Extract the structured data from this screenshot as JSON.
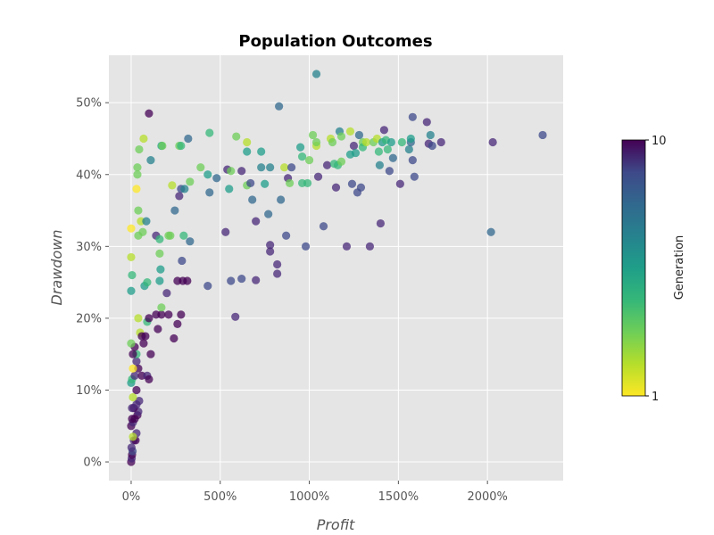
{
  "chart_data": {
    "type": "scatter",
    "title": "Population Outcomes",
    "xlabel": "Profit",
    "ylabel": "Drawdown",
    "xlim": [
      -125,
      2425
    ],
    "ylim": [
      -2.6,
      56.6
    ],
    "x_ticks": [
      0,
      500,
      1000,
      1500,
      2000
    ],
    "x_tick_labels": [
      "0%",
      "500%",
      "1000%",
      "1500%",
      "2000%"
    ],
    "y_ticks": [
      0,
      10,
      20,
      30,
      40,
      50
    ],
    "y_tick_labels": [
      "0%",
      "10%",
      "20%",
      "30%",
      "40%",
      "50%"
    ],
    "grid": true,
    "colorbar": {
      "label": "Generation",
      "min": 1,
      "max": 10,
      "min_label": "1",
      "max_label": "10",
      "colormap": "viridis_r"
    },
    "points": [
      [
        0,
        0,
        10
      ],
      [
        3,
        0.5,
        9
      ],
      [
        5,
        1,
        10
      ],
      [
        8,
        1.5,
        8
      ],
      [
        2,
        2,
        9
      ],
      [
        15,
        3,
        9
      ],
      [
        25,
        3,
        10
      ],
      [
        30,
        4,
        9
      ],
      [
        10,
        3.5,
        2
      ],
      [
        0,
        5,
        10
      ],
      [
        10,
        5.5,
        9
      ],
      [
        20,
        6,
        10
      ],
      [
        5,
        6,
        10
      ],
      [
        35,
        6.5,
        10
      ],
      [
        40,
        7,
        9
      ],
      [
        15,
        7.5,
        10
      ],
      [
        5,
        7.5,
        9
      ],
      [
        30,
        8,
        9
      ],
      [
        45,
        8.5,
        9
      ],
      [
        10,
        9,
        2
      ],
      [
        30,
        10,
        10
      ],
      [
        0,
        11,
        5
      ],
      [
        5,
        11.5,
        4
      ],
      [
        20,
        12,
        9
      ],
      [
        60,
        12,
        10
      ],
      [
        90,
        12,
        9
      ],
      [
        100,
        11.5,
        10
      ],
      [
        40,
        13,
        10
      ],
      [
        10,
        13,
        1
      ],
      [
        30,
        14,
        9
      ],
      [
        30,
        15,
        4
      ],
      [
        10,
        15,
        10
      ],
      [
        20,
        16,
        10
      ],
      [
        0,
        16.5,
        3
      ],
      [
        70,
        16.5,
        10
      ],
      [
        50,
        18,
        2
      ],
      [
        60,
        17.5,
        10
      ],
      [
        80,
        17.5,
        10
      ],
      [
        90,
        19.5,
        4
      ],
      [
        100,
        20,
        10
      ],
      [
        40,
        20,
        2
      ],
      [
        150,
        18.5,
        10
      ],
      [
        140,
        20.5,
        10
      ],
      [
        170,
        20.5,
        10
      ],
      [
        210,
        20.5,
        10
      ],
      [
        280,
        20.5,
        10
      ],
      [
        170,
        21.5,
        3
      ],
      [
        110,
        15,
        10
      ],
      [
        200,
        23.5,
        9
      ],
      [
        240,
        17.2,
        10
      ],
      [
        260,
        19.2,
        10
      ],
      [
        260,
        25.2,
        10
      ],
      [
        290,
        25.2,
        10
      ],
      [
        315,
        25.2,
        10
      ],
      [
        430,
        24.5,
        8
      ],
      [
        75,
        24.5,
        5
      ],
      [
        90,
        25,
        4
      ],
      [
        160,
        25.2,
        5
      ],
      [
        0,
        23.8,
        5
      ],
      [
        5,
        26,
        4
      ],
      [
        165,
        26.8,
        5
      ],
      [
        0,
        28.5,
        2
      ],
      [
        160,
        29,
        3
      ],
      [
        285,
        28,
        8
      ],
      [
        330,
        30.7,
        7
      ],
      [
        295,
        31.5,
        4
      ],
      [
        140,
        31.5,
        9
      ],
      [
        160,
        31,
        4
      ],
      [
        210,
        31.5,
        3
      ],
      [
        220,
        31.5,
        3
      ],
      [
        40,
        31.5,
        3
      ],
      [
        65,
        32,
        3
      ],
      [
        0,
        32.5,
        1
      ],
      [
        55,
        33.5,
        2
      ],
      [
        85,
        33.5,
        6
      ],
      [
        40,
        35,
        3
      ],
      [
        245,
        35,
        7
      ],
      [
        270,
        37,
        9
      ],
      [
        30,
        38,
        1
      ],
      [
        280,
        38,
        8
      ],
      [
        300,
        38,
        6
      ],
      [
        330,
        39,
        3
      ],
      [
        230,
        38.5,
        2
      ],
      [
        35,
        40,
        3
      ],
      [
        35,
        41,
        3
      ],
      [
        110,
        42,
        6
      ],
      [
        170,
        44,
        5
      ],
      [
        175,
        44,
        3
      ],
      [
        45,
        43.5,
        3
      ],
      [
        70,
        45,
        2
      ],
      [
        270,
        44,
        3
      ],
      [
        280,
        44,
        4
      ],
      [
        320,
        45,
        7
      ],
      [
        100,
        48.5,
        10
      ],
      [
        440,
        45.8,
        4
      ],
      [
        390,
        41,
        3
      ],
      [
        430,
        40,
        5
      ],
      [
        440,
        37.5,
        7
      ],
      [
        480,
        39.5,
        7
      ],
      [
        530,
        32,
        9
      ],
      [
        540,
        40.7,
        9
      ],
      [
        560,
        40.5,
        3
      ],
      [
        550,
        38,
        5
      ],
      [
        560,
        25.2,
        8
      ],
      [
        585,
        20.2,
        9
      ],
      [
        590,
        45.3,
        3
      ],
      [
        620,
        40.5,
        9
      ],
      [
        620,
        25.5,
        8
      ],
      [
        650,
        43.2,
        5
      ],
      [
        650,
        38.5,
        3
      ],
      [
        650,
        44.5,
        2
      ],
      [
        670,
        38.8,
        8
      ],
      [
        680,
        36.5,
        7
      ],
      [
        700,
        33.5,
        9
      ],
      [
        700,
        25.3,
        9
      ],
      [
        730,
        43.2,
        5
      ],
      [
        730,
        41,
        6
      ],
      [
        750,
        38.7,
        5
      ],
      [
        770,
        34.5,
        7
      ],
      [
        780,
        41,
        6
      ],
      [
        780,
        30.2,
        9
      ],
      [
        780,
        29.3,
        9
      ],
      [
        820,
        27.5,
        9
      ],
      [
        820,
        26.2,
        9
      ],
      [
        830,
        49.5,
        7
      ],
      [
        840,
        36.5,
        7
      ],
      [
        860,
        41,
        2
      ],
      [
        870,
        31.5,
        8
      ],
      [
        880,
        39.5,
        9
      ],
      [
        890,
        38.8,
        3
      ],
      [
        900,
        41,
        8
      ],
      [
        950,
        43.8,
        5
      ],
      [
        960,
        42.5,
        4
      ],
      [
        960,
        38.8,
        4
      ],
      [
        980,
        30,
        8
      ],
      [
        990,
        38.8,
        4
      ],
      [
        1000,
        42,
        3
      ],
      [
        1020,
        45.5,
        3
      ],
      [
        1040,
        44,
        2
      ],
      [
        1040,
        44.5,
        3
      ],
      [
        1040,
        54,
        6
      ],
      [
        1050,
        39.7,
        9
      ],
      [
        1080,
        32.8,
        8
      ],
      [
        1100,
        41.3,
        9
      ],
      [
        1120,
        45,
        2
      ],
      [
        1130,
        44.5,
        3
      ],
      [
        1140,
        41.5,
        4
      ],
      [
        1150,
        38.2,
        9
      ],
      [
        1160,
        41.3,
        4
      ],
      [
        1170,
        46,
        6
      ],
      [
        1180,
        45.3,
        3
      ],
      [
        1180,
        41.8,
        3
      ],
      [
        1210,
        30,
        9
      ],
      [
        1230,
        46,
        2
      ],
      [
        1230,
        42.8,
        5
      ],
      [
        1240,
        38.7,
        8
      ],
      [
        1250,
        44,
        9
      ],
      [
        1260,
        43,
        5
      ],
      [
        1270,
        37.5,
        8
      ],
      [
        1280,
        45.5,
        7
      ],
      [
        1290,
        38.2,
        8
      ],
      [
        1300,
        44.5,
        3
      ],
      [
        1300,
        43.8,
        4
      ],
      [
        1320,
        44.5,
        2
      ],
      [
        1340,
        30,
        9
      ],
      [
        1360,
        44.5,
        3
      ],
      [
        1380,
        45,
        2
      ],
      [
        1390,
        43.2,
        4
      ],
      [
        1395,
        41.3,
        6
      ],
      [
        1400,
        33.2,
        9
      ],
      [
        1410,
        44.5,
        5
      ],
      [
        1420,
        46.2,
        9
      ],
      [
        1430,
        44.8,
        4
      ],
      [
        1440,
        43.5,
        4
      ],
      [
        1450,
        40.5,
        8
      ],
      [
        1460,
        44.5,
        5
      ],
      [
        1470,
        42.3,
        7
      ],
      [
        1510,
        38.7,
        9
      ],
      [
        1520,
        44.5,
        4
      ],
      [
        1560,
        43.5,
        6
      ],
      [
        1570,
        44.5,
        7
      ],
      [
        1570,
        45,
        5
      ],
      [
        1580,
        48,
        8
      ],
      [
        1580,
        42,
        8
      ],
      [
        1590,
        39.7,
        8
      ],
      [
        1660,
        47.3,
        9
      ],
      [
        1670,
        44.3,
        9
      ],
      [
        1680,
        45.5,
        6
      ],
      [
        1690,
        44,
        8
      ],
      [
        1740,
        44.5,
        9
      ],
      [
        2030,
        44.5,
        9
      ],
      [
        2020,
        32,
        7
      ],
      [
        2310,
        45.5,
        8
      ]
    ]
  }
}
